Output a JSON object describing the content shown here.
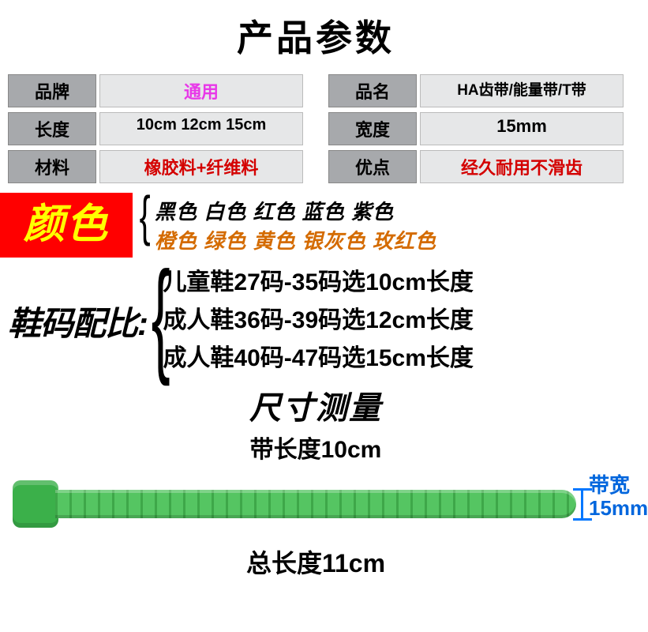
{
  "title": "产品参数",
  "specs": {
    "row1": {
      "left": {
        "label": "品牌",
        "value": "通用",
        "color": "pink"
      },
      "right": {
        "label": "品名",
        "value": "HA齿带/能量带/T带",
        "color": "black"
      }
    },
    "row2": {
      "left": {
        "label": "长度",
        "value": "10cm 12cm 15cm",
        "color": "black"
      },
      "right": {
        "label": "宽度",
        "value": "15mm",
        "color": "black"
      }
    },
    "row3": {
      "left": {
        "label": "材料",
        "value": "橡胶料+纤维料",
        "color": "red"
      },
      "right": {
        "label": "优点",
        "value": "经久耐用不滑齿",
        "color": "red"
      }
    }
  },
  "color_section": {
    "label": "颜色",
    "line1": "黑色  白色  红色  蓝色  紫色",
    "line2": "橙色  绿色  黄色  银灰色  玫红色"
  },
  "size_match": {
    "label": "鞋码配比:",
    "lines": [
      "儿童鞋27码-35码选10cm长度",
      "成人鞋36码-39码选12cm长度",
      "成人鞋40码-47码选15cm长度"
    ]
  },
  "measure": {
    "title": "尺寸测量",
    "belt_length": "带长度10cm",
    "total_length": "总长度11cm",
    "width_label": "带宽",
    "width_value": "15mm"
  },
  "style": {
    "belt_color": "#47b553",
    "belt_head_color": "#3bb04a",
    "width_mark_color": "#0077ff",
    "color_label_bg": "#ff0000",
    "color_label_fg": "#ffff00"
  }
}
